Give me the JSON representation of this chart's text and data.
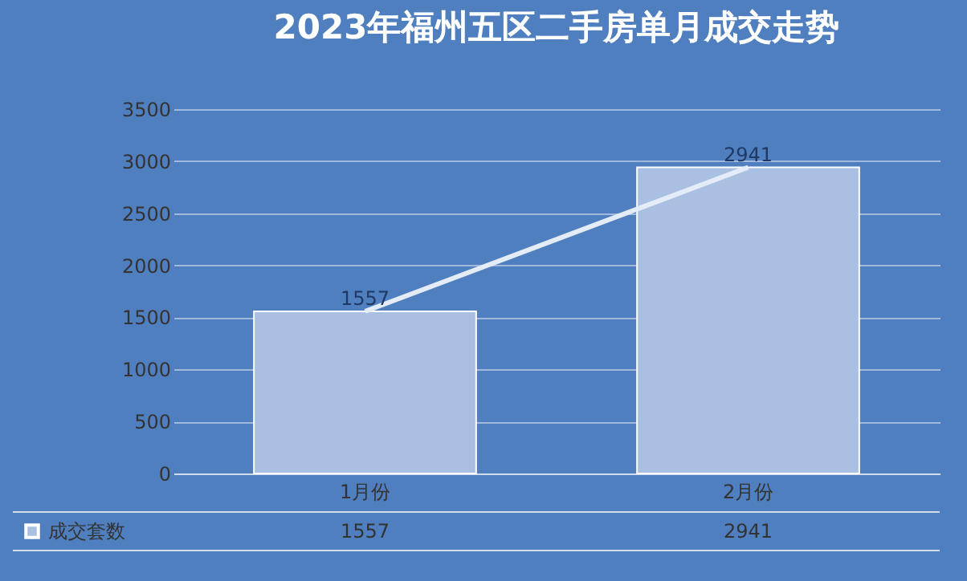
{
  "chart_data": {
    "type": "bar",
    "title": "2023年福州五区二手房单月成交走势",
    "categories": [
      "1月份",
      "2月份"
    ],
    "series": [
      {
        "name": "成交套数",
        "color": "#a9c0e2",
        "values": [
          1557,
          2941
        ]
      },
      {
        "type": "line",
        "color": "#e4ecf7",
        "values": [
          1557,
          2941
        ]
      }
    ],
    "ylim": [
      0,
      3500
    ],
    "yticks": [
      0,
      500,
      1000,
      1500,
      2000,
      2500,
      3000,
      3500
    ],
    "grid": "y",
    "data_labels": true
  }
}
